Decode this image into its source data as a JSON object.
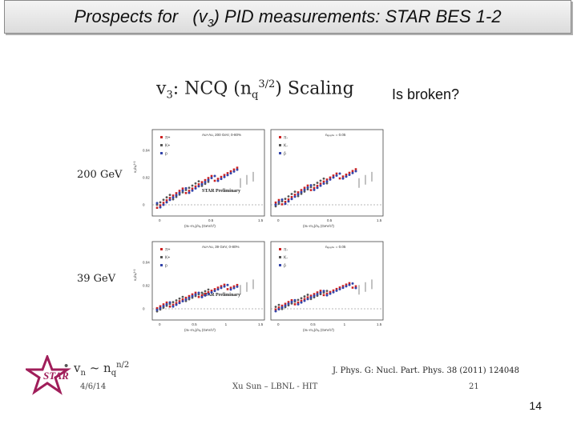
{
  "slide": {
    "title_prefix": "Prospects for",
    "title_v": "(v",
    "title_sub": "3",
    "title_suffix": ")  PID  measurements:  STAR BES 1-2",
    "page_number": "14"
  },
  "figure": {
    "heading_prefix": "v",
    "heading_sub": "3",
    "heading_mid": ": NCQ (n",
    "heading_sub2": "q",
    "heading_sup": "3/2",
    "heading_suffix": ") Scaling",
    "note": "Is broken?",
    "row_labels": [
      "200 GeV",
      "39 GeV"
    ],
    "panels": [
      {
        "header": "Au+Au, 200 GeV, 0-80%",
        "legend": [
          "π+",
          "K+",
          "p"
        ],
        "preliminary": "STAR Preliminary",
        "xlabel": "(mₜ-m₀)/nₑ (GeV/c²)",
        "ylabel": "v₃/nₑ³ᐟ²",
        "yticks": [
          "0",
          "0.02",
          "0.04"
        ],
        "xticks": [
          "0",
          "0.5",
          "1.5"
        ]
      },
      {
        "header": "nₑₚₑₙₖ = 0.05",
        "legend": [
          "π-",
          "K-",
          "p̄"
        ],
        "preliminary": "",
        "xlabel": "(mₜ-m₀)/nₑ (GeV/c²)",
        "ylabel": "",
        "yticks": [],
        "xticks": [
          "0",
          "0.5",
          "1.5"
        ]
      },
      {
        "header": "Au+Au, 39 GeV, 0-80%",
        "legend": [
          "π+",
          "K+",
          "p"
        ],
        "preliminary": "STAR Preliminary",
        "xlabel": "(mₜ-m₀)/nₑ (GeV/c²)",
        "ylabel": "v₃/nₑ³ᐟ²",
        "yticks": [
          "0",
          "0.02",
          "0.04"
        ],
        "xticks": [
          "0",
          "0.5",
          "1",
          "1.5"
        ]
      },
      {
        "header": "nₑₚₑₙₖ = 0.05",
        "legend": [
          "π-",
          "K-",
          "p̄"
        ],
        "preliminary": "",
        "xlabel": "(mₜ-m₀)/nₑ (GeV/c²)",
        "ylabel": "",
        "yticks": [],
        "xticks": [
          "0",
          "0.5",
          "1",
          "1.5"
        ]
      }
    ],
    "formula_v": "v",
    "formula_sub": "n",
    "formula_mid": " ~ n",
    "formula_sub2": "q",
    "formula_sup": "n/2",
    "citation": "J. Phys. G: Nucl. Part. Phys. 38 (2011) 124048",
    "footer_date": "4/6/14",
    "footer_center": "Xu Sun – LBNL - HIT",
    "footer_page": "21",
    "logo_text": "STAR"
  },
  "colors": {
    "pion": "#cc2222",
    "kaon": "#555555",
    "proton": "#3344aa",
    "logo": "#a01e5a"
  }
}
